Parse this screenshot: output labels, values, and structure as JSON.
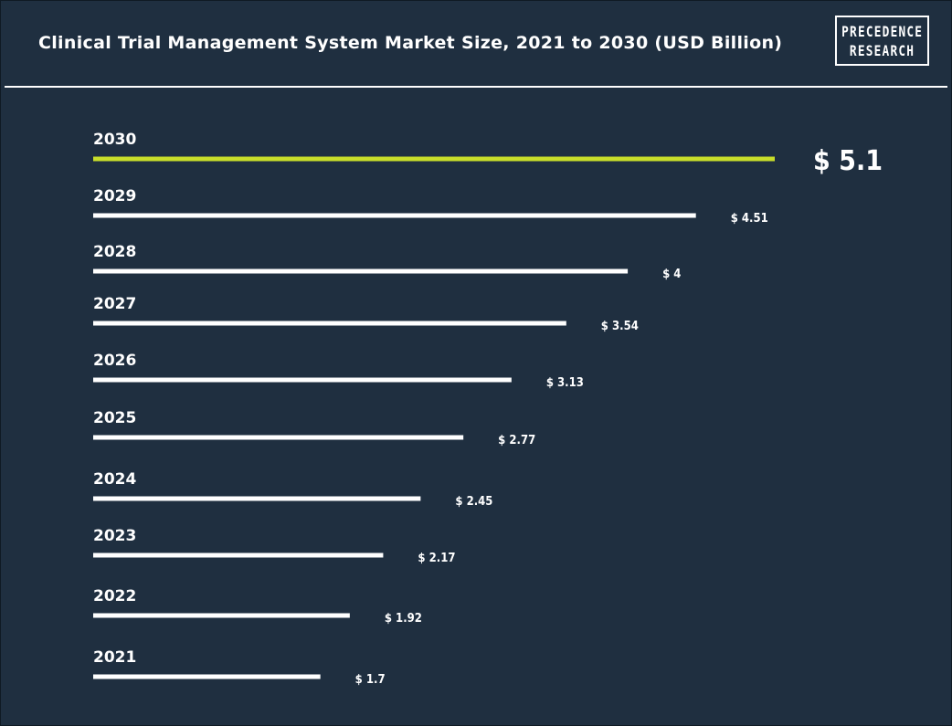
{
  "header": {
    "title": "Clinical Trial Management System Market Size, 2021 to 2030 (USD Billion)",
    "logo_line1": "PRECEDENCE",
    "logo_line2": "RESEARCH"
  },
  "colors": {
    "background": "#1f2f40",
    "bar": "#ffffff",
    "highlight_bar": "#c8de2a",
    "text": "#ffffff"
  },
  "chart_data": {
    "type": "bar",
    "orientation": "horizontal",
    "title": "Clinical Trial Management System Market Size, 2021 to 2030 (USD Billion)",
    "categories": [
      "2030",
      "2029",
      "2028",
      "2027",
      "2026",
      "2025",
      "2024",
      "2023",
      "2022",
      "2021"
    ],
    "values": [
      5.1,
      4.51,
      4,
      3.54,
      3.13,
      2.77,
      2.45,
      2.17,
      1.92,
      1.7
    ],
    "value_labels": [
      "$ 5.1",
      "$ 4.51",
      "$ 4",
      "$ 3.54",
      "$ 3.13",
      "$ 2.77",
      "$ 2.45",
      "$ 2.17",
      "$ 1.92",
      "$ 1.7"
    ],
    "highlight_category": "2030",
    "unit": "USD Billion",
    "xlim": [
      0,
      5.1
    ],
    "grid": false,
    "legend": "none"
  }
}
